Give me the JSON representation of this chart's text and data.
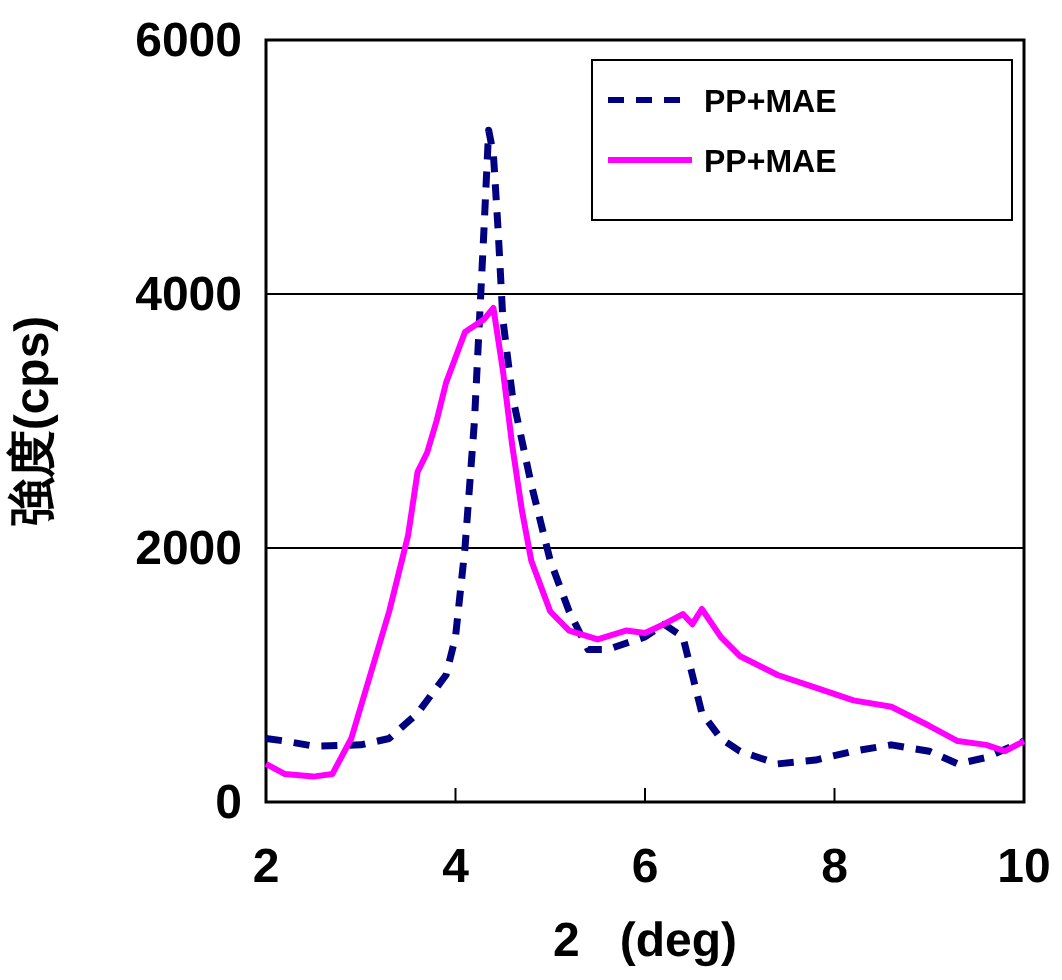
{
  "chart_data": {
    "type": "line",
    "xlabel": "2   (deg)",
    "ylabel": "強度(cps)",
    "xlim": [
      2,
      10
    ],
    "ylim": [
      0,
      6000
    ],
    "xticks": [
      2,
      4,
      6,
      8,
      10
    ],
    "yticks": [
      0,
      2000,
      4000,
      6000
    ],
    "grid": "y",
    "legend": "top right",
    "series": [
      {
        "name": "PP+MAE",
        "color": "#000080",
        "line_style": "dashed",
        "x": [
          2.0,
          2.2,
          2.5,
          3.0,
          3.3,
          3.6,
          3.9,
          4.0,
          4.1,
          4.2,
          4.3,
          4.35,
          4.4,
          4.45,
          4.5,
          4.6,
          4.8,
          5.0,
          5.2,
          5.4,
          5.6,
          5.8,
          6.0,
          6.2,
          6.4,
          6.5,
          6.6,
          6.8,
          7.0,
          7.4,
          7.8,
          8.2,
          8.6,
          9.0,
          9.3,
          9.6,
          10.0
        ],
        "values": [
          500,
          480,
          440,
          450,
          500,
          700,
          1000,
          1300,
          2000,
          3000,
          4500,
          5290,
          5100,
          4500,
          3800,
          3200,
          2500,
          1900,
          1500,
          1200,
          1200,
          1250,
          1300,
          1400,
          1300,
          1000,
          700,
          500,
          400,
          300,
          330,
          400,
          450,
          400,
          300,
          350,
          480
        ]
      },
      {
        "name": "PP+MAE",
        "color": "#ff00ff",
        "line_style": "solid",
        "x": [
          2.0,
          2.2,
          2.5,
          2.7,
          2.9,
          3.1,
          3.3,
          3.5,
          3.6,
          3.7,
          3.8,
          3.9,
          4.0,
          4.1,
          4.2,
          4.3,
          4.4,
          4.5,
          4.6,
          4.7,
          4.8,
          4.9,
          5.0,
          5.2,
          5.5,
          5.8,
          6.0,
          6.2,
          6.4,
          6.5,
          6.6,
          6.8,
          7.0,
          7.4,
          7.8,
          8.2,
          8.6,
          9.0,
          9.3,
          9.6,
          9.8,
          10.0
        ],
        "values": [
          300,
          220,
          200,
          220,
          500,
          1000,
          1500,
          2100,
          2600,
          2750,
          3000,
          3300,
          3500,
          3700,
          3750,
          3800,
          3890,
          3400,
          2800,
          2300,
          1900,
          1700,
          1500,
          1350,
          1280,
          1350,
          1330,
          1400,
          1480,
          1400,
          1520,
          1300,
          1150,
          1000,
          900,
          800,
          750,
          600,
          480,
          450,
          400,
          480
        ]
      }
    ]
  }
}
